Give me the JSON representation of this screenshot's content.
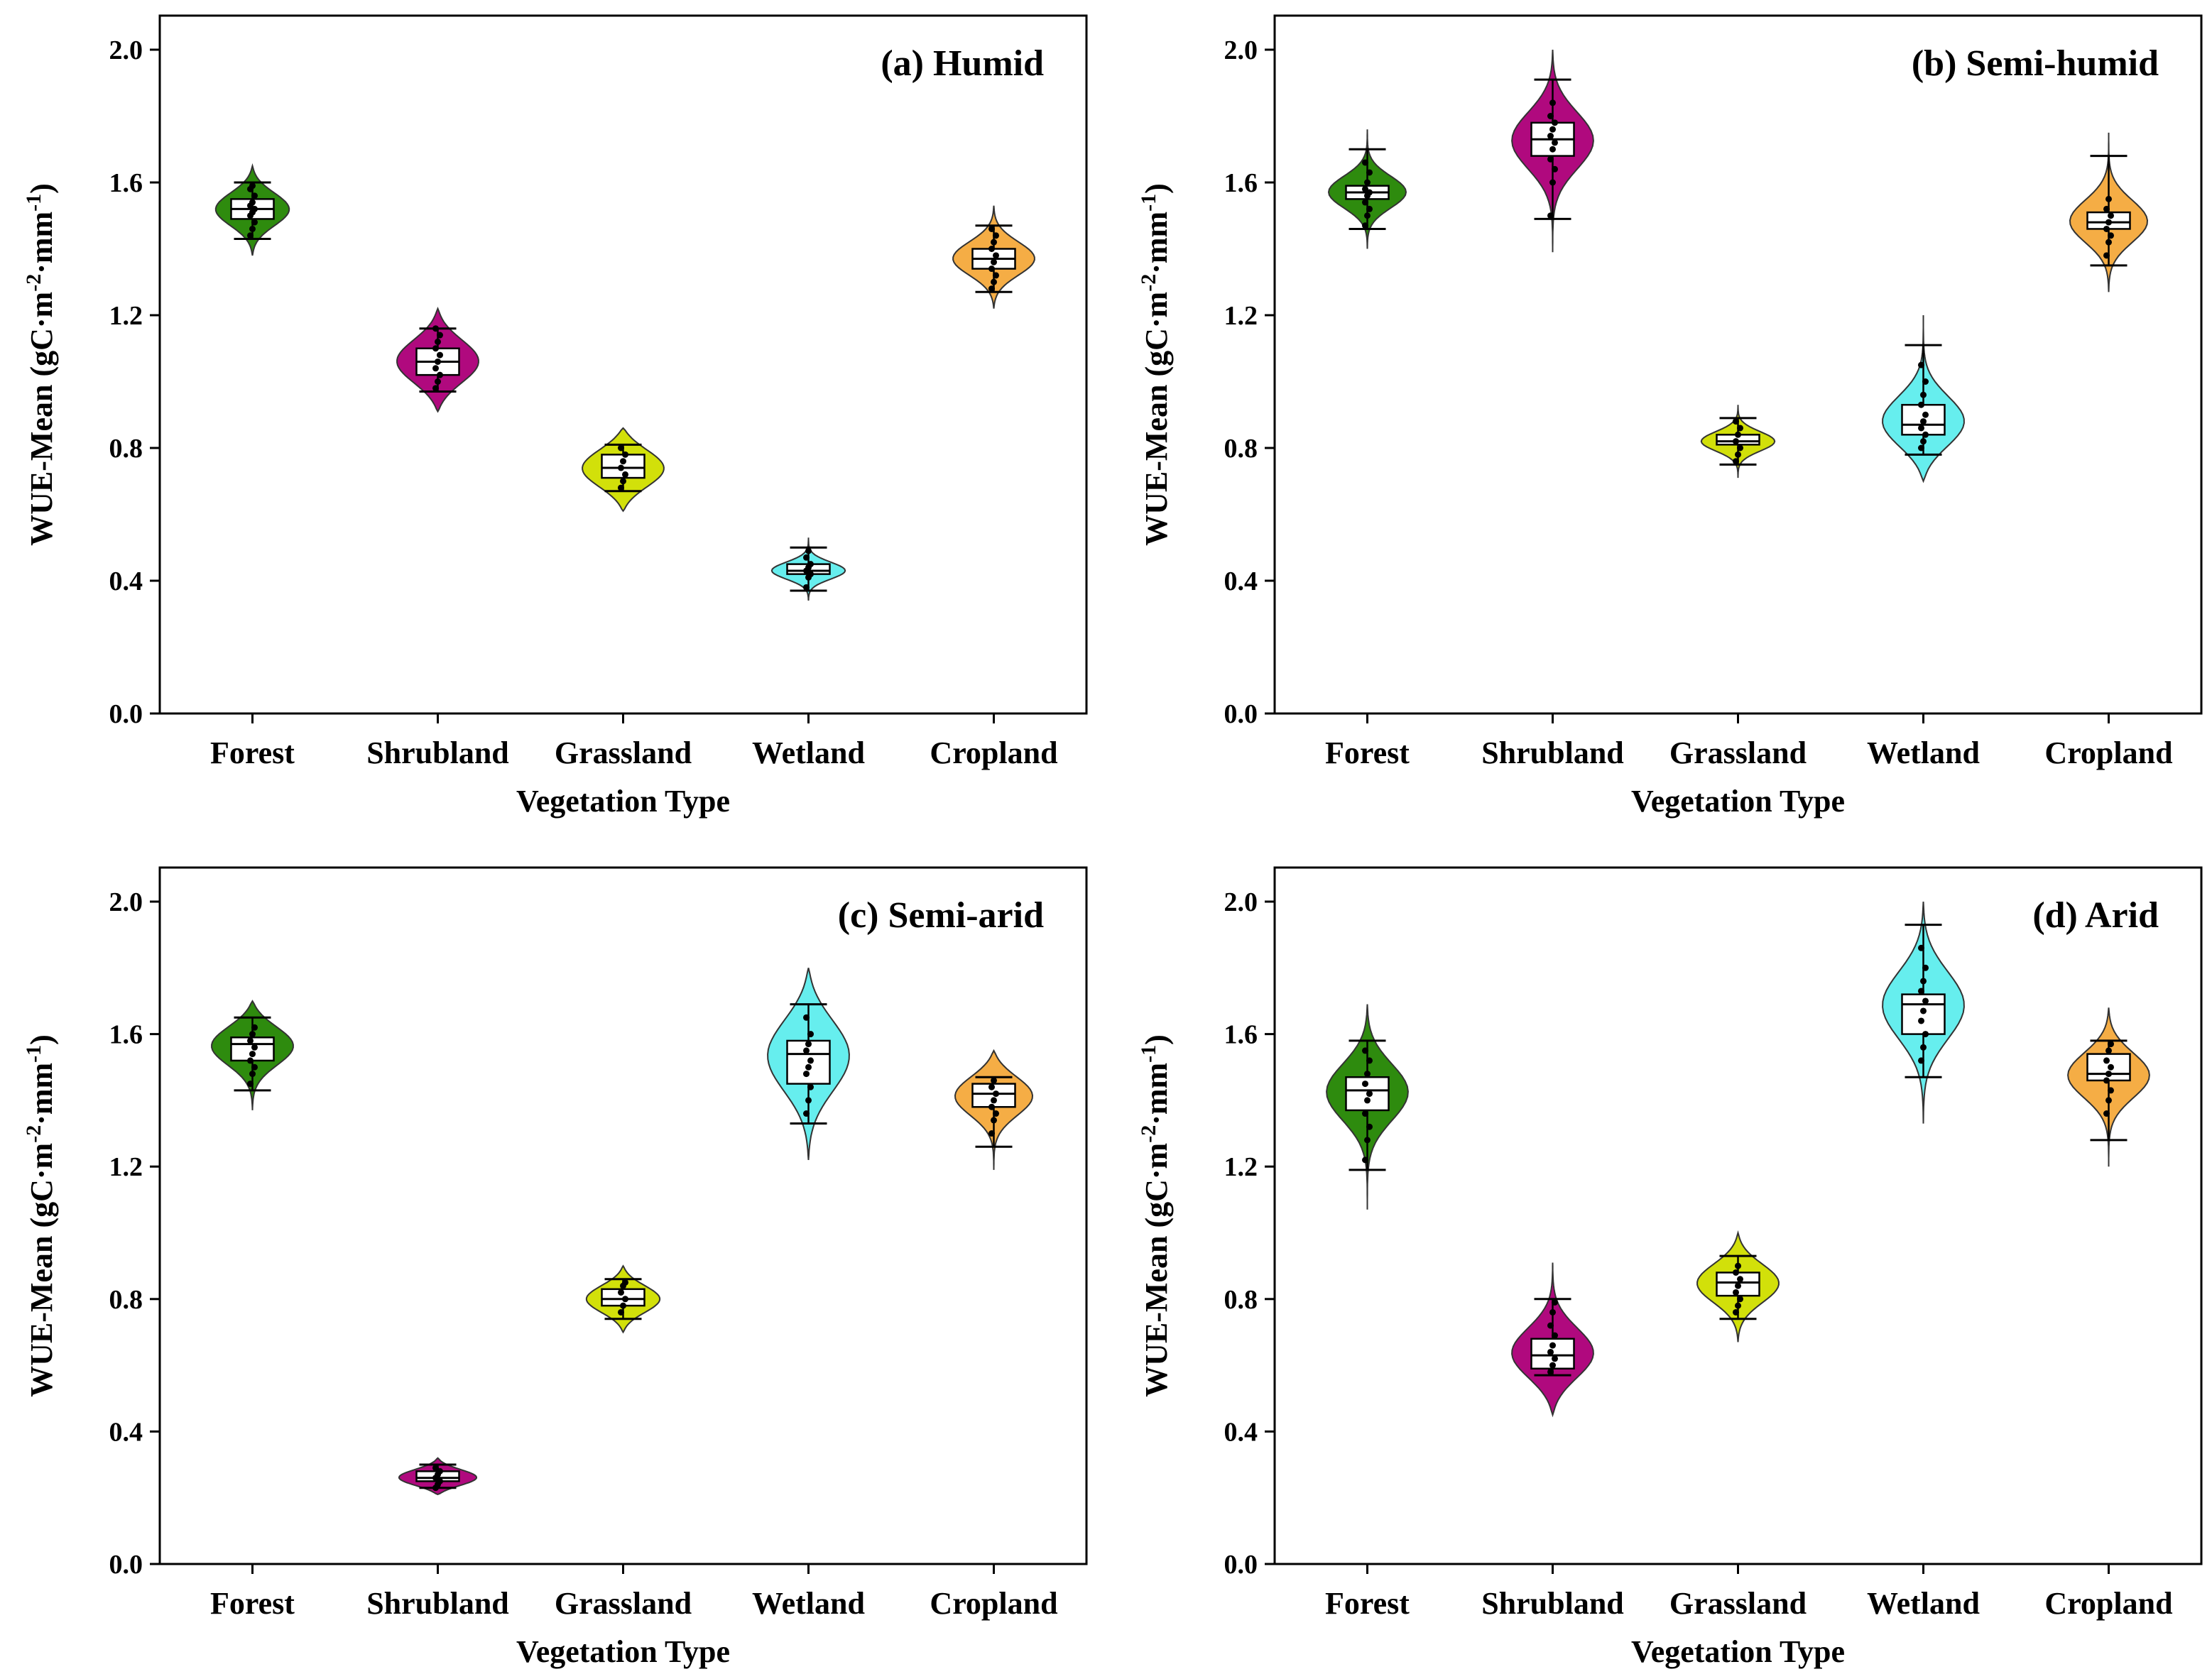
{
  "figure": {
    "colors": {
      "Forest": "#2e8b0e",
      "Shrubland": "#b0097e",
      "Grassland": "#d2e00a",
      "Wetland": "#66eeee",
      "Cropland": "#f5ad45"
    }
  },
  "chart_data": [
    {
      "type": "violin",
      "title": "(a) Humid",
      "xlabel": "Vegetation Type",
      "ylabel_main": "WUE-Mean (gC",
      "ylabel_exp1": "-2",
      "ylabel_mid": "mm",
      "ylabel_exp2": "-1",
      "ylabel_close": ")",
      "ylim": [
        0.0,
        2.0
      ],
      "yticks": [
        "0.0",
        "0.4",
        "0.8",
        "1.2",
        "1.6",
        "2.0"
      ],
      "categories": [
        "Forest",
        "Shrubland",
        "Grassland",
        "Wetland",
        "Cropland"
      ],
      "series": [
        {
          "name": "Forest",
          "min": 1.38,
          "max": 1.65,
          "whisker_low": 1.43,
          "whisker_high": 1.6,
          "q1": 1.49,
          "median": 1.52,
          "q3": 1.55,
          "width": 0.9,
          "points": [
            1.44,
            1.46,
            1.48,
            1.5,
            1.51,
            1.52,
            1.53,
            1.54,
            1.56,
            1.58,
            1.59
          ]
        },
        {
          "name": "Shrubland",
          "min": 0.91,
          "max": 1.22,
          "whisker_low": 0.97,
          "whisker_high": 1.16,
          "q1": 1.02,
          "median": 1.06,
          "q3": 1.1,
          "width": 1.0,
          "points": [
            0.98,
            1.0,
            1.02,
            1.04,
            1.06,
            1.08,
            1.1,
            1.12,
            1.14,
            1.16
          ]
        },
        {
          "name": "Grassland",
          "min": 0.61,
          "max": 0.86,
          "whisker_low": 0.67,
          "whisker_high": 0.81,
          "q1": 0.71,
          "median": 0.74,
          "q3": 0.78,
          "width": 1.0,
          "points": [
            0.68,
            0.7,
            0.72,
            0.74,
            0.76,
            0.78,
            0.8
          ]
        },
        {
          "name": "Wetland",
          "min": 0.34,
          "max": 0.53,
          "whisker_low": 0.37,
          "whisker_high": 0.5,
          "q1": 0.42,
          "median": 0.43,
          "q3": 0.45,
          "width": 0.9,
          "points": [
            0.38,
            0.41,
            0.42,
            0.43,
            0.44,
            0.45,
            0.47,
            0.49
          ]
        },
        {
          "name": "Cropland",
          "min": 1.22,
          "max": 1.53,
          "whisker_low": 1.27,
          "whisker_high": 1.47,
          "q1": 1.34,
          "median": 1.37,
          "q3": 1.4,
          "width": 1.0,
          "points": [
            1.28,
            1.3,
            1.32,
            1.34,
            1.36,
            1.38,
            1.4,
            1.42,
            1.44,
            1.46
          ]
        }
      ]
    },
    {
      "type": "violin",
      "title": "(b) Semi-humid",
      "xlabel": "Vegetation Type",
      "ylabel_main": "WUE-Mean (gC",
      "ylabel_exp1": "-2",
      "ylabel_mid": "mm",
      "ylabel_exp2": "-1",
      "ylabel_close": ")",
      "ylim": [
        0.0,
        2.0
      ],
      "yticks": [
        "0.0",
        "0.4",
        "0.8",
        "1.2",
        "1.6",
        "2.0"
      ],
      "categories": [
        "Forest",
        "Shrubland",
        "Grassland",
        "Wetland",
        "Cropland"
      ],
      "series": [
        {
          "name": "Forest",
          "min": 1.4,
          "max": 1.76,
          "whisker_low": 1.46,
          "whisker_high": 1.7,
          "q1": 1.55,
          "median": 1.57,
          "q3": 1.59,
          "width": 0.95,
          "points": [
            1.47,
            1.5,
            1.52,
            1.54,
            1.56,
            1.57,
            1.58,
            1.6,
            1.63,
            1.66
          ]
        },
        {
          "name": "Shrubland",
          "min": 1.39,
          "max": 2.0,
          "whisker_low": 1.49,
          "whisker_high": 1.91,
          "q1": 1.68,
          "median": 1.73,
          "q3": 1.78,
          "width": 1.0,
          "points": [
            1.5,
            1.6,
            1.64,
            1.67,
            1.7,
            1.72,
            1.74,
            1.76,
            1.78,
            1.8,
            1.84
          ]
        },
        {
          "name": "Grassland",
          "min": 0.71,
          "max": 0.93,
          "whisker_low": 0.75,
          "whisker_high": 0.89,
          "q1": 0.81,
          "median": 0.82,
          "q3": 0.84,
          "width": 0.9,
          "points": [
            0.76,
            0.78,
            0.8,
            0.82,
            0.84,
            0.86,
            0.88
          ]
        },
        {
          "name": "Wetland",
          "min": 0.7,
          "max": 1.2,
          "whisker_low": 0.78,
          "whisker_high": 1.11,
          "q1": 0.84,
          "median": 0.87,
          "q3": 0.93,
          "width": 1.0,
          "points": [
            0.8,
            0.82,
            0.84,
            0.86,
            0.88,
            0.9,
            0.93,
            0.96,
            1.0,
            1.05
          ]
        },
        {
          "name": "Cropland",
          "min": 1.27,
          "max": 1.75,
          "whisker_low": 1.35,
          "whisker_high": 1.68,
          "q1": 1.46,
          "median": 1.48,
          "q3": 1.51,
          "width": 0.95,
          "points": [
            1.38,
            1.42,
            1.44,
            1.46,
            1.48,
            1.5,
            1.52,
            1.55
          ]
        }
      ]
    },
    {
      "type": "violin",
      "title": "(c) Semi-arid",
      "xlabel": "Vegetation Type",
      "ylabel_main": "WUE-Mean (gC",
      "ylabel_exp1": "-2",
      "ylabel_mid": "mm",
      "ylabel_exp2": "-1",
      "ylabel_close": ")",
      "ylim": [
        0.0,
        2.0
      ],
      "yticks": [
        "0.0",
        "0.4",
        "0.8",
        "1.2",
        "1.6",
        "2.0"
      ],
      "categories": [
        "Forest",
        "Shrubland",
        "Grassland",
        "Wetland",
        "Cropland"
      ],
      "series": [
        {
          "name": "Forest",
          "min": 1.37,
          "max": 1.7,
          "whisker_low": 1.43,
          "whisker_high": 1.65,
          "q1": 1.52,
          "median": 1.57,
          "q3": 1.59,
          "width": 1.0,
          "points": [
            1.45,
            1.48,
            1.5,
            1.52,
            1.54,
            1.56,
            1.58,
            1.6,
            1.62
          ]
        },
        {
          "name": "Shrubland",
          "min": 0.21,
          "max": 0.32,
          "whisker_low": 0.23,
          "whisker_high": 0.3,
          "q1": 0.25,
          "median": 0.26,
          "q3": 0.28,
          "width": 0.95,
          "points": [
            0.23,
            0.24,
            0.25,
            0.26,
            0.27,
            0.28,
            0.29
          ]
        },
        {
          "name": "Grassland",
          "min": 0.7,
          "max": 0.9,
          "whisker_low": 0.74,
          "whisker_high": 0.86,
          "q1": 0.78,
          "median": 0.8,
          "q3": 0.83,
          "width": 0.9,
          "points": [
            0.76,
            0.78,
            0.8,
            0.82,
            0.84,
            0.85
          ]
        },
        {
          "name": "Wetland",
          "min": 1.22,
          "max": 1.8,
          "whisker_low": 1.33,
          "whisker_high": 1.69,
          "q1": 1.45,
          "median": 1.54,
          "q3": 1.58,
          "width": 1.0,
          "points": [
            1.36,
            1.4,
            1.44,
            1.48,
            1.5,
            1.52,
            1.55,
            1.57,
            1.6,
            1.65
          ]
        },
        {
          "name": "Cropland",
          "min": 1.19,
          "max": 1.55,
          "whisker_low": 1.26,
          "whisker_high": 1.47,
          "q1": 1.38,
          "median": 1.42,
          "q3": 1.45,
          "width": 0.95,
          "points": [
            1.3,
            1.34,
            1.36,
            1.38,
            1.4,
            1.42,
            1.44,
            1.46
          ]
        }
      ]
    },
    {
      "type": "violin",
      "title": "(d) Arid",
      "xlabel": "Vegetation Type",
      "ylabel_main": "WUE-Mean (gC",
      "ylabel_exp1": "-2",
      "ylabel_mid": "mm",
      "ylabel_exp2": "-1",
      "ylabel_close": ")",
      "ylim": [
        0.0,
        2.0
      ],
      "yticks": [
        "0.0",
        "0.4",
        "0.8",
        "1.2",
        "1.6",
        "2.0"
      ],
      "categories": [
        "Forest",
        "Shrubland",
        "Grassland",
        "Wetland",
        "Cropland"
      ],
      "series": [
        {
          "name": "Forest",
          "min": 1.07,
          "max": 1.69,
          "whisker_low": 1.19,
          "whisker_high": 1.58,
          "q1": 1.37,
          "median": 1.43,
          "q3": 1.47,
          "width": 1.0,
          "points": [
            1.22,
            1.28,
            1.32,
            1.36,
            1.4,
            1.42,
            1.45,
            1.48,
            1.52,
            1.55
          ]
        },
        {
          "name": "Shrubland",
          "min": 0.45,
          "max": 0.91,
          "whisker_low": 0.57,
          "whisker_high": 0.8,
          "q1": 0.59,
          "median": 0.63,
          "q3": 0.68,
          "width": 1.0,
          "points": [
            0.58,
            0.6,
            0.62,
            0.64,
            0.66,
            0.69,
            0.72,
            0.76,
            0.79
          ]
        },
        {
          "name": "Grassland",
          "min": 0.67,
          "max": 1.0,
          "whisker_low": 0.74,
          "whisker_high": 0.93,
          "q1": 0.81,
          "median": 0.85,
          "q3": 0.88,
          "width": 1.0,
          "points": [
            0.76,
            0.78,
            0.8,
            0.82,
            0.84,
            0.86,
            0.88,
            0.9
          ]
        },
        {
          "name": "Wetland",
          "min": 1.33,
          "max": 2.0,
          "whisker_low": 1.47,
          "whisker_high": 1.93,
          "q1": 1.6,
          "median": 1.69,
          "q3": 1.72,
          "width": 1.0,
          "points": [
            1.52,
            1.56,
            1.6,
            1.64,
            1.67,
            1.7,
            1.73,
            1.76,
            1.8,
            1.86
          ]
        },
        {
          "name": "Cropland",
          "min": 1.2,
          "max": 1.68,
          "whisker_low": 1.28,
          "whisker_high": 1.58,
          "q1": 1.46,
          "median": 1.48,
          "q3": 1.54,
          "width": 1.0,
          "points": [
            1.36,
            1.4,
            1.43,
            1.46,
            1.48,
            1.5,
            1.52,
            1.55,
            1.57
          ]
        }
      ]
    }
  ]
}
